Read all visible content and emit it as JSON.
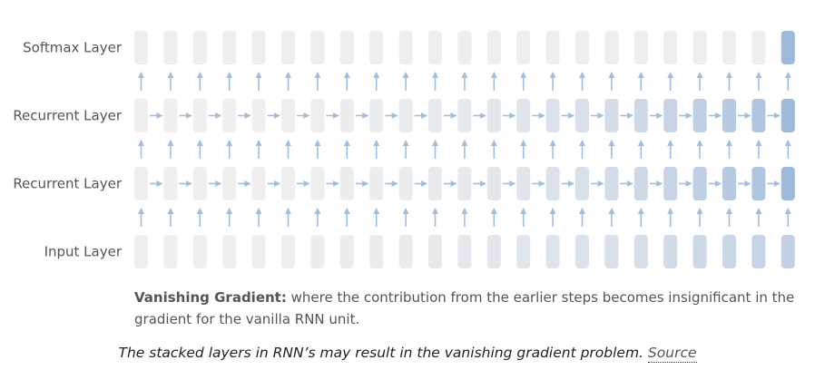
{
  "diagram": {
    "columns": 23,
    "layers": [
      {
        "label": "Softmax Layer",
        "kind": "softmax"
      },
      {
        "label": "Recurrent Layer",
        "kind": "recurrent"
      },
      {
        "label": "Recurrent Layer",
        "kind": "recurrent"
      },
      {
        "label": "Input Layer",
        "kind": "input"
      }
    ],
    "colors": {
      "cell_light": "#efefef",
      "cell_dark": "#9db9dc",
      "arrow": "#9fbfe0",
      "label": "#555555"
    }
  },
  "caption": {
    "title": "Vanishing Gradient:",
    "text": " where the contribution from the earlier steps becomes insignificant in the gradient for the vanilla RNN unit."
  },
  "figure_caption": {
    "text": "The stacked layers in RNN’s may result in the vanishing gradient problem. ",
    "link_label": "Source"
  }
}
